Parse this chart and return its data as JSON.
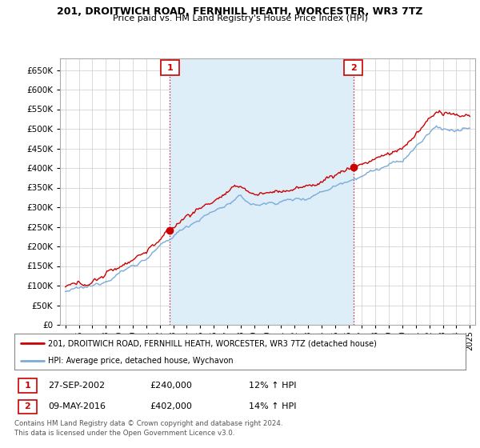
{
  "title": "201, DROITWICH ROAD, FERNHILL HEATH, WORCESTER, WR3 7TZ",
  "subtitle": "Price paid vs. HM Land Registry's House Price Index (HPI)",
  "yticks": [
    0,
    50000,
    100000,
    150000,
    200000,
    250000,
    300000,
    350000,
    400000,
    450000,
    500000,
    550000,
    600000,
    650000
  ],
  "ylim": [
    0,
    680000
  ],
  "sale1_date": "27-SEP-2002",
  "sale1_price": 240000,
  "sale1_hpi": "12% ↑ HPI",
  "sale1_x": 2002.74,
  "sale2_date": "09-MAY-2016",
  "sale2_price": 402000,
  "sale2_hpi": "14% ↑ HPI",
  "sale2_x": 2016.36,
  "legend_line1": "201, DROITWICH ROAD, FERNHILL HEATH, WORCESTER, WR3 7TZ (detached house)",
  "legend_line2": "HPI: Average price, detached house, Wychavon",
  "footnote": "Contains HM Land Registry data © Crown copyright and database right 2024.\nThis data is licensed under the Open Government Licence v3.0.",
  "red_color": "#cc0000",
  "blue_color": "#7aabdb",
  "blue_fill": "#ddeef8",
  "grid_color": "#cccccc",
  "background_color": "#ffffff",
  "plot_bg_color": "#ffffff",
  "xlim_left": 1994.6,
  "xlim_right": 2025.4
}
